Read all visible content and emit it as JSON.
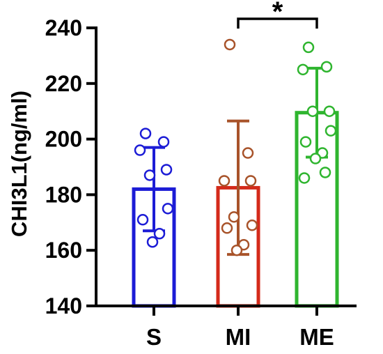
{
  "chart_data": {
    "type": "bar",
    "xlabel": "",
    "ylabel": "CHI3L1(ng/ml)",
    "ylim": [
      140,
      240
    ],
    "yticks": [
      "140",
      "160",
      "180",
      "200",
      "220",
      "240"
    ],
    "grid": false,
    "categories": [
      "S",
      "MI",
      "ME"
    ],
    "means": [
      182,
      182.5,
      209.5
    ],
    "sd": [
      15,
      24,
      16
    ],
    "colors": [
      "#1c1cd6",
      "#d42a1a",
      "#2fb52f"
    ],
    "error_colors": [
      "#1c1cd6",
      "#a8532a",
      "#2fb52f"
    ],
    "points": [
      [
        202,
        199,
        196,
        189,
        187,
        175,
        171,
        166,
        163
      ],
      [
        234,
        195,
        185,
        185,
        172,
        169,
        168,
        162,
        160
      ],
      [
        233,
        226,
        225,
        210,
        210,
        203,
        199,
        195,
        193,
        188,
        186
      ]
    ],
    "significance": {
      "from": "MI",
      "to": "ME",
      "label": "*"
    }
  }
}
